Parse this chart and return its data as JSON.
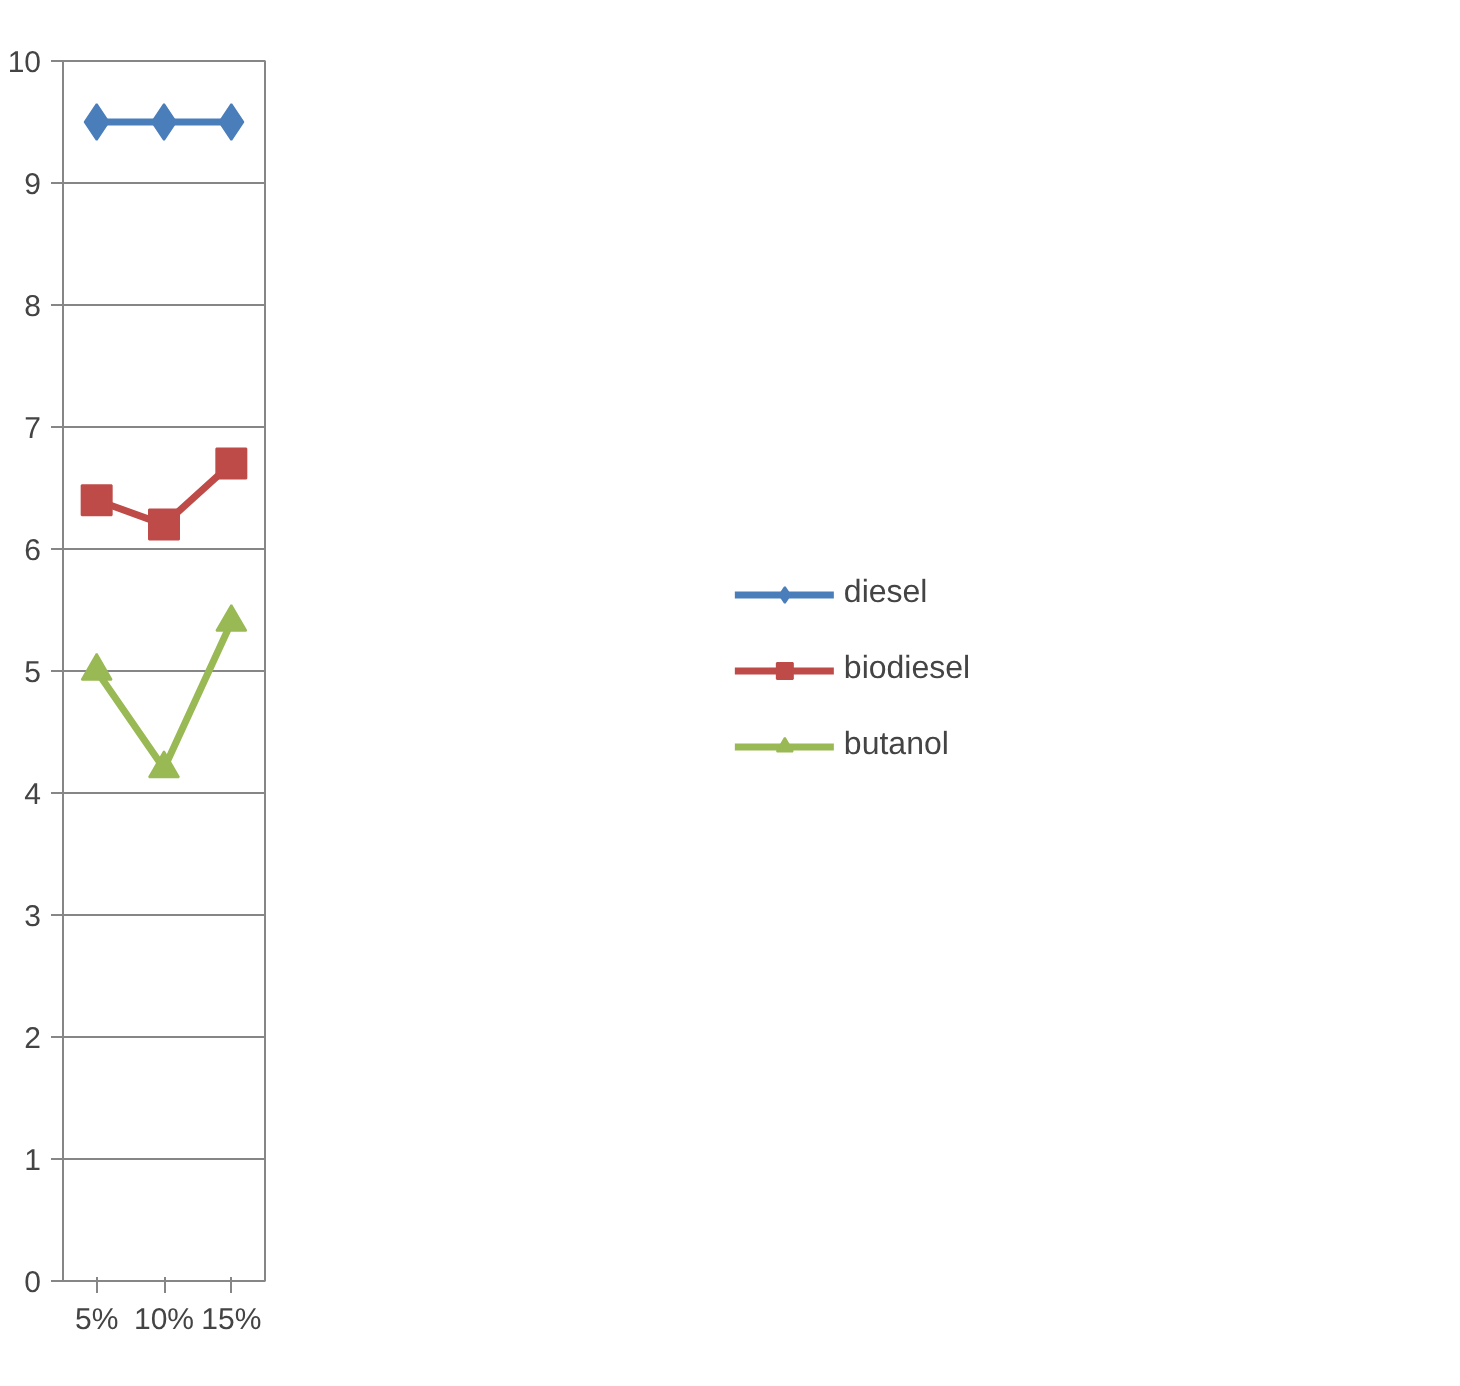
{
  "chart_data": {
    "type": "line",
    "categories": [
      "5%",
      "10%",
      "15%"
    ],
    "series": [
      {
        "name": "diesel",
        "color": "#4a7ebb",
        "marker": "diamond",
        "values": [
          9.5,
          9.5,
          9.5
        ]
      },
      {
        "name": "biodiesel",
        "color": "#be4b48",
        "marker": "square",
        "values": [
          6.4,
          6.2,
          6.7
        ]
      },
      {
        "name": "butanol",
        "color": "#98b954",
        "marker": "triangle",
        "values": [
          5.0,
          4.2,
          5.4
        ]
      }
    ],
    "ylim": [
      0,
      10
    ],
    "yticks": [
      0,
      1,
      2,
      3,
      4,
      5,
      6,
      7,
      8,
      9,
      10
    ],
    "grid": "y",
    "legend": "right",
    "line_style": "solid"
  }
}
